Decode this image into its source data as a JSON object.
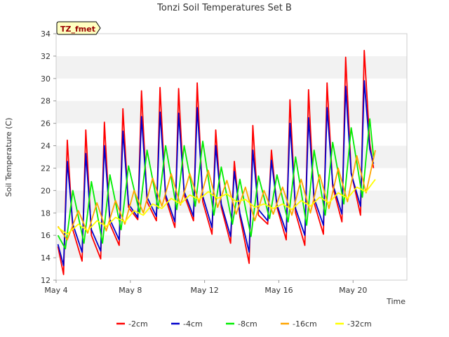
{
  "chart_data": {
    "type": "line",
    "title": "Tonzi Soil Temperatures Set B",
    "xlabel": "Time",
    "ylabel": "Soil Temperature (C)",
    "badge": "TZ_fmet",
    "xlim": [
      4,
      22.9
    ],
    "ylim": [
      12,
      34
    ],
    "yticks": [
      12,
      14,
      16,
      18,
      20,
      22,
      24,
      26,
      28,
      30,
      32,
      34
    ],
    "xticks": [
      {
        "value": 4,
        "label": "May 4"
      },
      {
        "value": 8,
        "label": "May 8"
      },
      {
        "value": 12,
        "label": "May 12"
      },
      {
        "value": 16,
        "label": "May 16"
      },
      {
        "value": 20,
        "label": "May 20"
      }
    ],
    "grid": "horizontal-bands",
    "legend_position": "bottom",
    "series": [
      {
        "name": "-2cm",
        "color": "#ff0000",
        "x": [
          4.1,
          4.4,
          4.6,
          4.9,
          5.4,
          5.6,
          5.9,
          6.4,
          6.6,
          6.9,
          7.4,
          7.6,
          7.9,
          8.4,
          8.6,
          8.9,
          9.4,
          9.6,
          9.9,
          10.4,
          10.6,
          10.9,
          11.4,
          11.6,
          11.9,
          12.4,
          12.6,
          12.9,
          13.4,
          13.6,
          13.9,
          14.4,
          14.6,
          14.9,
          15.4,
          15.6,
          15.9,
          16.4,
          16.6,
          16.9,
          17.4,
          17.6,
          17.9,
          18.4,
          18.6,
          18.9,
          19.4,
          19.6,
          19.9,
          20.4,
          20.6,
          20.9,
          21.1
        ],
        "y": [
          15.0,
          12.5,
          24.5,
          16.5,
          13.7,
          25.4,
          16.0,
          13.9,
          26.1,
          17.0,
          15.1,
          27.3,
          18.5,
          17.4,
          28.9,
          19.0,
          17.3,
          29.2,
          19.3,
          16.7,
          29.1,
          19.6,
          17.3,
          29.6,
          19.0,
          16.1,
          25.4,
          18.5,
          15.3,
          22.6,
          17.7,
          13.5,
          25.8,
          17.8,
          17.0,
          23.6,
          18.5,
          15.6,
          28.1,
          18.0,
          15.1,
          29.0,
          18.9,
          16.1,
          29.6,
          20.4,
          17.2,
          31.9,
          21.6,
          17.8,
          32.5,
          24.2,
          22.0
        ]
      },
      {
        "name": "-4cm",
        "color": "#0000cc",
        "x": [
          4.1,
          4.4,
          4.6,
          4.9,
          5.4,
          5.6,
          5.9,
          6.4,
          6.6,
          6.9,
          7.4,
          7.6,
          7.9,
          8.4,
          8.6,
          8.9,
          9.4,
          9.6,
          9.9,
          10.4,
          10.6,
          10.9,
          11.4,
          11.6,
          11.9,
          12.4,
          12.6,
          12.9,
          13.4,
          13.6,
          13.9,
          14.4,
          14.6,
          14.9,
          15.4,
          15.6,
          15.9,
          16.4,
          16.6,
          16.9,
          17.4,
          17.6,
          17.9,
          18.4,
          18.6,
          18.9,
          19.4,
          19.6,
          19.9,
          20.4,
          20.6,
          20.9,
          21.1
        ],
        "y": [
          15.2,
          13.3,
          22.6,
          17.0,
          14.5,
          23.3,
          16.5,
          14.6,
          24.0,
          17.4,
          15.6,
          25.3,
          18.8,
          17.6,
          26.6,
          19.4,
          17.7,
          27.0,
          19.6,
          17.2,
          26.9,
          19.9,
          17.7,
          27.4,
          19.5,
          16.7,
          24.0,
          18.8,
          15.9,
          21.7,
          18.0,
          14.5,
          23.6,
          18.3,
          17.3,
          22.7,
          18.7,
          16.3,
          26.0,
          18.4,
          16.0,
          26.5,
          19.3,
          16.9,
          27.4,
          20.6,
          17.9,
          29.3,
          21.5,
          18.6,
          29.8,
          23.7,
          22.4
        ]
      },
      {
        "name": "-8cm",
        "color": "#00ee00",
        "x": [
          4.1,
          4.5,
          4.9,
          5.5,
          5.9,
          6.5,
          6.9,
          7.5,
          7.9,
          8.5,
          8.9,
          9.5,
          9.9,
          10.5,
          10.9,
          11.5,
          11.9,
          12.5,
          12.9,
          13.5,
          13.9,
          14.5,
          14.9,
          15.5,
          15.9,
          16.5,
          16.9,
          17.5,
          17.9,
          18.5,
          18.9,
          19.5,
          19.9,
          20.5,
          20.9,
          21.1
        ],
        "y": [
          16.0,
          14.8,
          20.0,
          15.3,
          20.8,
          15.3,
          21.4,
          16.5,
          22.2,
          18.0,
          23.6,
          18.4,
          24.0,
          18.3,
          24.0,
          18.6,
          24.4,
          17.8,
          22.1,
          17.0,
          21.0,
          15.9,
          21.3,
          17.5,
          21.4,
          17.2,
          23.0,
          16.9,
          23.6,
          17.8,
          24.3,
          18.8,
          25.6,
          19.4,
          26.4,
          23.0
        ]
      },
      {
        "name": "-16cm",
        "color": "#ffa500",
        "x": [
          4.1,
          4.6,
          5.2,
          5.7,
          6.2,
          6.7,
          7.2,
          7.7,
          8.2,
          8.7,
          9.2,
          9.7,
          10.2,
          10.7,
          11.2,
          11.7,
          12.2,
          12.7,
          13.2,
          13.7,
          14.2,
          14.7,
          15.2,
          15.7,
          16.2,
          16.7,
          17.2,
          17.7,
          18.2,
          18.7,
          19.2,
          19.7,
          20.2,
          20.7,
          21.2
        ],
        "y": [
          16.8,
          15.6,
          18.2,
          16.2,
          18.9,
          16.4,
          19.1,
          17.0,
          20.0,
          18.0,
          21.1,
          18.6,
          21.5,
          18.7,
          21.5,
          18.9,
          21.8,
          18.5,
          20.9,
          17.9,
          20.3,
          17.3,
          20.0,
          17.9,
          20.3,
          17.8,
          21.0,
          18.0,
          21.4,
          18.4,
          22.0,
          19.0,
          23.1,
          19.8,
          23.6
        ]
      },
      {
        "name": "-32cm",
        "color": "#ffff00",
        "x": [
          4.1,
          4.6,
          5.2,
          5.7,
          6.2,
          6.7,
          7.2,
          7.7,
          8.2,
          8.7,
          9.2,
          9.7,
          10.2,
          10.7,
          11.2,
          11.7,
          12.2,
          12.7,
          13.2,
          13.7,
          14.2,
          14.7,
          15.2,
          15.7,
          16.2,
          16.7,
          17.2,
          17.7,
          18.2,
          18.7,
          19.2,
          19.7,
          20.2,
          20.7,
          21.2
        ],
        "y": [
          16.7,
          16.1,
          17.0,
          16.4,
          17.3,
          16.8,
          17.6,
          17.2,
          18.2,
          17.8,
          18.8,
          18.4,
          19.3,
          18.8,
          19.6,
          19.2,
          19.9,
          19.3,
          19.7,
          19.0,
          19.2,
          18.5,
          18.8,
          18.4,
          18.8,
          18.3,
          19.1,
          18.6,
          19.4,
          18.9,
          19.8,
          19.3,
          20.3,
          19.9,
          21.0
        ]
      }
    ]
  }
}
